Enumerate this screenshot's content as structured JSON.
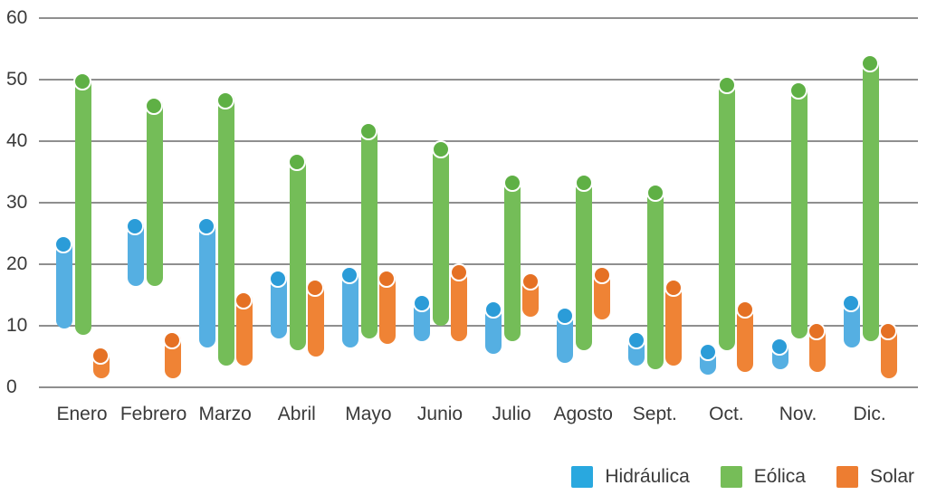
{
  "chart_data": {
    "type": "bar",
    "subtype": "vertical-floating-range-bars-rounded",
    "title": "",
    "xlabel": "",
    "ylabel": "",
    "categories": [
      "Enero",
      "Febrero",
      "Marzo",
      "Abril",
      "Mayo",
      "Junio",
      "Julio",
      "Agosto",
      "Sept.",
      "Oct.",
      "Nov.",
      "Dic."
    ],
    "ylim": [
      0,
      60
    ],
    "yticks": [
      0,
      10,
      20,
      30,
      40,
      50,
      60
    ],
    "grid": true,
    "legend_position": "bottom-right",
    "series": [
      {
        "name": "Hidráulica",
        "bar_color": "#55AFE2",
        "cap_color": "#2B9CD8",
        "legend_color": "#29A8DF",
        "ranges": [
          [
            9.5,
            24.5
          ],
          [
            16.5,
            27.5
          ],
          [
            6.5,
            27.5
          ],
          [
            8,
            19
          ],
          [
            6.5,
            19.5
          ],
          [
            7.5,
            15
          ],
          [
            5.5,
            14
          ],
          [
            4,
            13
          ],
          [
            3.5,
            9
          ],
          [
            2,
            7
          ],
          [
            3,
            8
          ],
          [
            6.5,
            15
          ]
        ]
      },
      {
        "name": "Eólica",
        "bar_color": "#74BD58",
        "cap_color": "#5FB045",
        "legend_color": "#76BD58",
        "ranges": [
          [
            8.5,
            51
          ],
          [
            16.5,
            47
          ],
          [
            3.5,
            48
          ],
          [
            6,
            38
          ],
          [
            8,
            43
          ],
          [
            10,
            40
          ],
          [
            7.5,
            34.5
          ],
          [
            6,
            34.5
          ],
          [
            3,
            33
          ],
          [
            6,
            50.5
          ],
          [
            8,
            49.5
          ],
          [
            7.5,
            54
          ]
        ]
      },
      {
        "name": "Solar",
        "bar_color": "#EF8335",
        "cap_color": "#E57124",
        "legend_color": "#ED7D31",
        "ranges": [
          [
            1.5,
            6.5
          ],
          [
            1.5,
            9
          ],
          [
            3.5,
            15.5
          ],
          [
            5,
            17.5
          ],
          [
            7,
            19
          ],
          [
            7.5,
            20
          ],
          [
            11.5,
            18.5
          ],
          [
            11,
            19.5
          ],
          [
            3.5,
            17.5
          ],
          [
            2.5,
            14
          ],
          [
            2.5,
            10.5
          ],
          [
            1.5,
            10.5
          ]
        ]
      }
    ],
    "axis_text_color": "#3A3A3A",
    "gridline_color": "#8F8F8F",
    "background_color": "#FFFFFF"
  }
}
